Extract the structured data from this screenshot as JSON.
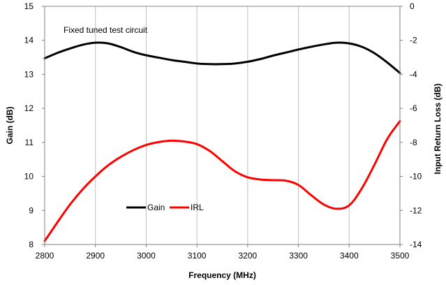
{
  "chart_data": {
    "type": "line",
    "annotation": "Fixed tuned test circuit",
    "xlabel": "Frequency (MHz)",
    "ylabel": "Gain (dB)",
    "y2label": "Input Return Loss (dB)",
    "xlim": [
      2800,
      3500
    ],
    "ylim": [
      8,
      15
    ],
    "y2lim": [
      -14,
      0
    ],
    "x_ticks": [
      2800,
      2900,
      3000,
      3100,
      3200,
      3300,
      3400,
      3500
    ],
    "y_ticks": [
      8,
      9,
      10,
      11,
      12,
      13,
      14,
      15
    ],
    "y2_ticks": [
      -14,
      -12,
      -10,
      -8,
      -6,
      -4,
      -2,
      0
    ],
    "grid": "vertical",
    "legend_placement": "lower-left",
    "series": [
      {
        "name": "Gain",
        "axis": "left",
        "color": "#000000",
        "x": [
          2800,
          2825,
          2850,
          2875,
          2900,
          2925,
          2950,
          2975,
          3000,
          3025,
          3050,
          3075,
          3100,
          3125,
          3150,
          3175,
          3200,
          3225,
          3250,
          3275,
          3300,
          3325,
          3350,
          3375,
          3400,
          3425,
          3450,
          3475,
          3500
        ],
        "values": [
          13.47,
          13.63,
          13.76,
          13.87,
          13.93,
          13.91,
          13.8,
          13.66,
          13.56,
          13.49,
          13.42,
          13.37,
          13.32,
          13.3,
          13.3,
          13.32,
          13.37,
          13.45,
          13.55,
          13.64,
          13.73,
          13.81,
          13.88,
          13.93,
          13.91,
          13.81,
          13.62,
          13.35,
          13.04
        ]
      },
      {
        "name": "IRL",
        "axis": "right",
        "color": "#ff0000",
        "x": [
          2800,
          2825,
          2850,
          2875,
          2900,
          2925,
          2950,
          2975,
          3000,
          3025,
          3050,
          3075,
          3100,
          3125,
          3150,
          3175,
          3200,
          3225,
          3250,
          3275,
          3300,
          3325,
          3350,
          3375,
          3400,
          3425,
          3450,
          3475,
          3500
        ],
        "values": [
          -13.8,
          -12.7,
          -11.65,
          -10.75,
          -10,
          -9.35,
          -8.85,
          -8.45,
          -8.15,
          -7.98,
          -7.9,
          -7.95,
          -8.1,
          -8.5,
          -9.1,
          -9.7,
          -10.05,
          -10.18,
          -10.22,
          -10.25,
          -10.5,
          -11.1,
          -11.65,
          -11.9,
          -11.7,
          -10.7,
          -9.3,
          -7.8,
          -6.75
        ]
      }
    ]
  }
}
